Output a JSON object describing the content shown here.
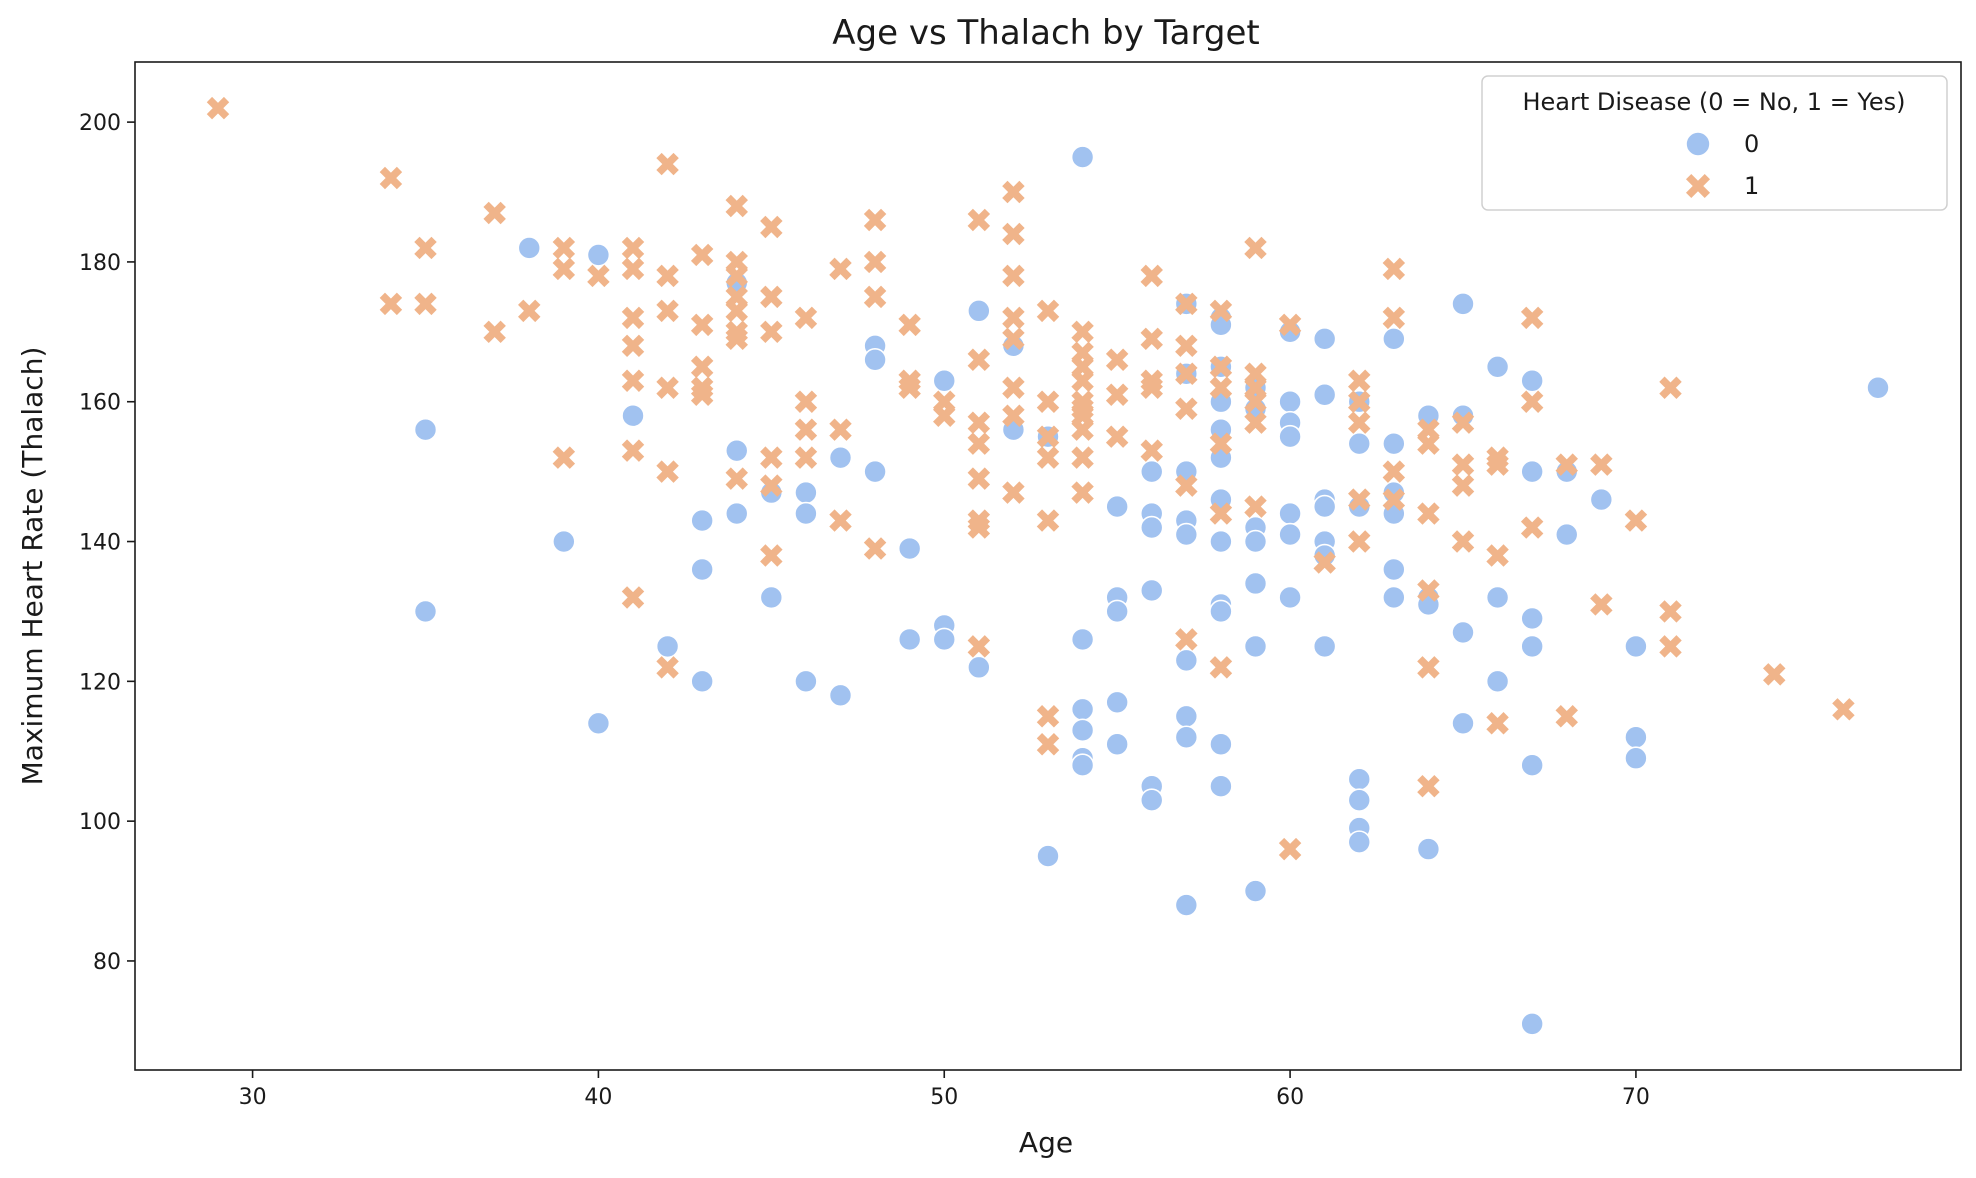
{
  "chart_data": {
    "type": "scatter",
    "title": "Age vs Thalach by Target",
    "xlabel": "Age",
    "ylabel": "Maximum Heart Rate (Thalach)",
    "xlim": [
      26.6,
      79.4
    ],
    "ylim": [
      64.4,
      208.6
    ],
    "xticks": [
      "30",
      "40",
      "50",
      "60",
      "70"
    ],
    "yticks": [
      "80",
      "100",
      "120",
      "140",
      "160",
      "180",
      "200"
    ],
    "grid": false,
    "legend": {
      "title": "Heart Disease (0 = No, 1 = Yes)",
      "placement": "top-right"
    },
    "series": [
      {
        "name": "0",
        "marker": "circle",
        "color": "#a1c2f0",
        "points": [
          [
            35,
            156
          ],
          [
            35,
            130
          ],
          [
            38,
            182
          ],
          [
            39,
            140
          ],
          [
            40,
            181
          ],
          [
            40,
            114
          ],
          [
            41,
            158
          ],
          [
            42,
            125
          ],
          [
            43,
            143
          ],
          [
            43,
            136
          ],
          [
            43,
            120
          ],
          [
            44,
            177
          ],
          [
            44,
            153
          ],
          [
            44,
            144
          ],
          [
            45,
            147
          ],
          [
            45,
            132
          ],
          [
            46,
            147
          ],
          [
            46,
            144
          ],
          [
            46,
            120
          ],
          [
            47,
            152
          ],
          [
            47,
            118
          ],
          [
            48,
            168
          ],
          [
            48,
            166
          ],
          [
            48,
            150
          ],
          [
            49,
            139
          ],
          [
            49,
            126
          ],
          [
            50,
            163
          ],
          [
            50,
            128
          ],
          [
            50,
            126
          ],
          [
            51,
            173
          ],
          [
            51,
            122
          ],
          [
            52,
            168
          ],
          [
            52,
            156
          ],
          [
            53,
            155
          ],
          [
            53,
            95
          ],
          [
            54,
            195
          ],
          [
            54,
            126
          ],
          [
            54,
            116
          ],
          [
            54,
            113
          ],
          [
            54,
            109
          ],
          [
            54,
            108
          ],
          [
            55,
            145
          ],
          [
            55,
            132
          ],
          [
            55,
            130
          ],
          [
            55,
            117
          ],
          [
            55,
            111
          ],
          [
            56,
            150
          ],
          [
            56,
            144
          ],
          [
            56,
            142
          ],
          [
            56,
            133
          ],
          [
            56,
            105
          ],
          [
            56,
            103
          ],
          [
            57,
            174
          ],
          [
            57,
            164
          ],
          [
            57,
            150
          ],
          [
            57,
            143
          ],
          [
            57,
            141
          ],
          [
            57,
            123
          ],
          [
            57,
            115
          ],
          [
            57,
            112
          ],
          [
            57,
            88
          ],
          [
            58,
            172
          ],
          [
            58,
            171
          ],
          [
            58,
            165
          ],
          [
            58,
            160
          ],
          [
            58,
            156
          ],
          [
            58,
            152
          ],
          [
            58,
            146
          ],
          [
            58,
            140
          ],
          [
            58,
            131
          ],
          [
            58,
            130
          ],
          [
            58,
            111
          ],
          [
            58,
            105
          ],
          [
            59,
            162
          ],
          [
            59,
            159
          ],
          [
            59,
            142
          ],
          [
            59,
            140
          ],
          [
            59,
            134
          ],
          [
            59,
            125
          ],
          [
            59,
            90
          ],
          [
            60,
            170
          ],
          [
            60,
            160
          ],
          [
            60,
            157
          ],
          [
            60,
            155
          ],
          [
            60,
            144
          ],
          [
            60,
            141
          ],
          [
            60,
            132
          ],
          [
            61,
            169
          ],
          [
            61,
            161
          ],
          [
            61,
            146
          ],
          [
            61,
            145
          ],
          [
            61,
            140
          ],
          [
            61,
            138
          ],
          [
            61,
            125
          ],
          [
            62,
            160
          ],
          [
            62,
            154
          ],
          [
            62,
            145
          ],
          [
            62,
            106
          ],
          [
            62,
            103
          ],
          [
            62,
            99
          ],
          [
            62,
            97
          ],
          [
            63,
            169
          ],
          [
            63,
            154
          ],
          [
            63,
            147
          ],
          [
            63,
            144
          ],
          [
            63,
            136
          ],
          [
            63,
            132
          ],
          [
            64,
            158
          ],
          [
            64,
            132
          ],
          [
            64,
            131
          ],
          [
            64,
            96
          ],
          [
            65,
            174
          ],
          [
            65,
            158
          ],
          [
            65,
            127
          ],
          [
            65,
            114
          ],
          [
            66,
            165
          ],
          [
            66,
            132
          ],
          [
            66,
            120
          ],
          [
            67,
            163
          ],
          [
            67,
            150
          ],
          [
            67,
            129
          ],
          [
            67,
            125
          ],
          [
            67,
            108
          ],
          [
            67,
            71
          ],
          [
            68,
            150
          ],
          [
            68,
            141
          ],
          [
            69,
            146
          ],
          [
            70,
            125
          ],
          [
            70,
            112
          ],
          [
            70,
            109
          ],
          [
            77,
            162
          ]
        ]
      },
      {
        "name": "1",
        "marker": "x",
        "color": "#f0b48a",
        "points": [
          [
            29,
            202
          ],
          [
            34,
            192
          ],
          [
            34,
            174
          ],
          [
            35,
            182
          ],
          [
            35,
            174
          ],
          [
            37,
            187
          ],
          [
            37,
            170
          ],
          [
            38,
            173
          ],
          [
            39,
            182
          ],
          [
            39,
            179
          ],
          [
            39,
            152
          ],
          [
            40,
            178
          ],
          [
            41,
            182
          ],
          [
            41,
            179
          ],
          [
            41,
            172
          ],
          [
            41,
            168
          ],
          [
            41,
            163
          ],
          [
            41,
            153
          ],
          [
            41,
            132
          ],
          [
            42,
            194
          ],
          [
            42,
            178
          ],
          [
            42,
            173
          ],
          [
            42,
            162
          ],
          [
            42,
            150
          ],
          [
            42,
            122
          ],
          [
            43,
            181
          ],
          [
            43,
            171
          ],
          [
            43,
            165
          ],
          [
            43,
            162
          ],
          [
            43,
            161
          ],
          [
            44,
            188
          ],
          [
            44,
            180
          ],
          [
            44,
            178
          ],
          [
            44,
            175
          ],
          [
            44,
            173
          ],
          [
            44,
            170
          ],
          [
            44,
            169
          ],
          [
            44,
            149
          ],
          [
            45,
            185
          ],
          [
            45,
            175
          ],
          [
            45,
            170
          ],
          [
            45,
            152
          ],
          [
            45,
            148
          ],
          [
            45,
            138
          ],
          [
            46,
            172
          ],
          [
            46,
            160
          ],
          [
            46,
            156
          ],
          [
            46,
            152
          ],
          [
            47,
            179
          ],
          [
            47,
            156
          ],
          [
            47,
            143
          ],
          [
            48,
            186
          ],
          [
            48,
            180
          ],
          [
            48,
            175
          ],
          [
            48,
            139
          ],
          [
            49,
            171
          ],
          [
            49,
            163
          ],
          [
            49,
            162
          ],
          [
            50,
            160
          ],
          [
            50,
            158
          ],
          [
            51,
            186
          ],
          [
            51,
            166
          ],
          [
            51,
            157
          ],
          [
            51,
            154
          ],
          [
            51,
            149
          ],
          [
            51,
            143
          ],
          [
            51,
            142
          ],
          [
            51,
            125
          ],
          [
            52,
            190
          ],
          [
            52,
            184
          ],
          [
            52,
            178
          ],
          [
            52,
            172
          ],
          [
            52,
            169
          ],
          [
            52,
            162
          ],
          [
            52,
            158
          ],
          [
            52,
            147
          ],
          [
            53,
            173
          ],
          [
            53,
            160
          ],
          [
            53,
            155
          ],
          [
            53,
            152
          ],
          [
            53,
            143
          ],
          [
            53,
            115
          ],
          [
            53,
            111
          ],
          [
            54,
            170
          ],
          [
            54,
            167
          ],
          [
            54,
            165
          ],
          [
            54,
            163
          ],
          [
            54,
            160
          ],
          [
            54,
            159
          ],
          [
            54,
            158
          ],
          [
            54,
            156
          ],
          [
            54,
            152
          ],
          [
            54,
            147
          ],
          [
            55,
            166
          ],
          [
            55,
            161
          ],
          [
            55,
            155
          ],
          [
            56,
            178
          ],
          [
            56,
            169
          ],
          [
            56,
            163
          ],
          [
            56,
            162
          ],
          [
            56,
            153
          ],
          [
            57,
            174
          ],
          [
            57,
            168
          ],
          [
            57,
            164
          ],
          [
            57,
            159
          ],
          [
            57,
            148
          ],
          [
            57,
            126
          ],
          [
            58,
            173
          ],
          [
            58,
            165
          ],
          [
            58,
            162
          ],
          [
            58,
            154
          ],
          [
            58,
            144
          ],
          [
            58,
            122
          ],
          [
            59,
            182
          ],
          [
            59,
            164
          ],
          [
            59,
            162
          ],
          [
            59,
            160
          ],
          [
            59,
            157
          ],
          [
            59,
            145
          ],
          [
            60,
            171
          ],
          [
            60,
            96
          ],
          [
            61,
            137
          ],
          [
            62,
            163
          ],
          [
            62,
            160
          ],
          [
            62,
            157
          ],
          [
            62,
            146
          ],
          [
            62,
            140
          ],
          [
            63,
            179
          ],
          [
            63,
            172
          ],
          [
            63,
            150
          ],
          [
            63,
            146
          ],
          [
            64,
            156
          ],
          [
            64,
            154
          ],
          [
            64,
            144
          ],
          [
            64,
            133
          ],
          [
            64,
            122
          ],
          [
            64,
            105
          ],
          [
            65,
            157
          ],
          [
            65,
            151
          ],
          [
            65,
            148
          ],
          [
            65,
            140
          ],
          [
            66,
            152
          ],
          [
            66,
            151
          ],
          [
            66,
            138
          ],
          [
            66,
            114
          ],
          [
            67,
            172
          ],
          [
            67,
            160
          ],
          [
            67,
            142
          ],
          [
            68,
            151
          ],
          [
            68,
            115
          ],
          [
            69,
            151
          ],
          [
            69,
            131
          ],
          [
            70,
            143
          ],
          [
            71,
            162
          ],
          [
            71,
            130
          ],
          [
            71,
            125
          ],
          [
            74,
            121
          ],
          [
            76,
            116
          ]
        ]
      }
    ]
  }
}
